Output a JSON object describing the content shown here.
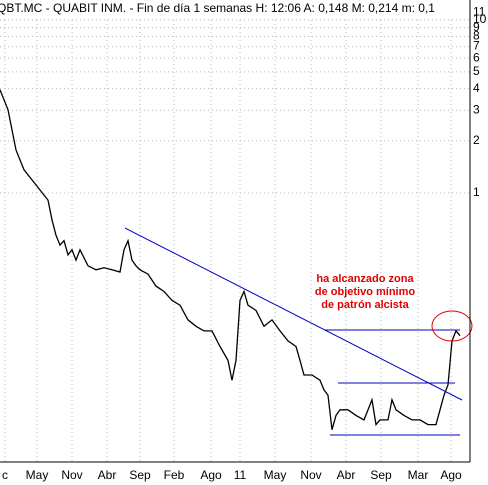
{
  "chart_data": {
    "type": "line",
    "title": "QBT.MC - QUABIT INM. - Fin de día 1 semanas H: 12:06 A: 0,148 M: 0,214 m: 0,1",
    "annotation": [
      "ha alcanzado zona",
      "de objetivo mínimo",
      "de patrón alcista"
    ],
    "log_scale": true,
    "grid": true,
    "x": [
      0,
      2,
      4,
      6,
      8,
      10,
      12,
      13,
      14,
      15,
      16,
      17,
      18,
      19,
      20,
      22,
      24,
      26,
      28,
      30,
      31,
      32,
      33,
      34,
      35,
      37,
      39,
      41,
      43,
      45,
      47,
      49,
      51,
      53,
      55,
      57,
      58,
      59,
      60,
      61,
      62,
      64,
      66,
      68,
      70,
      72,
      74,
      75,
      76,
      78,
      80,
      81,
      82,
      83,
      84,
      85,
      87,
      89,
      91,
      93,
      94,
      95,
      97,
      98,
      99,
      101,
      103,
      105,
      107,
      109,
      110,
      111,
      112,
      113,
      114,
      115
    ],
    "series": [
      {
        "name": "QBT.MC",
        "color": "#000000",
        "values": [
          3.94,
          3.02,
          1.77,
          1.36,
          1.19,
          1.04,
          0.91,
          0.7,
          0.57,
          0.5,
          0.53,
          0.44,
          0.47,
          0.41,
          0.47,
          0.38,
          0.36,
          0.37,
          0.36,
          0.35,
          0.47,
          0.53,
          0.41,
          0.38,
          0.36,
          0.34,
          0.29,
          0.27,
          0.24,
          0.225,
          0.185,
          0.17,
          0.16,
          0.16,
          0.13,
          0.108,
          0.083,
          0.108,
          0.24,
          0.27,
          0.225,
          0.21,
          0.17,
          0.185,
          0.16,
          0.14,
          0.13,
          0.108,
          0.089,
          0.089,
          0.083,
          0.073,
          0.068,
          0.043,
          0.052,
          0.056,
          0.056,
          0.052,
          0.049,
          0.064,
          0.046,
          0.049,
          0.049,
          0.064,
          0.056,
          0.052,
          0.049,
          0.049,
          0.046,
          0.046,
          0.056,
          0.068,
          0.078,
          0.14,
          0.16,
          0.15
        ]
      }
    ],
    "xlim": [
      0,
      117.5
    ],
    "xticks": [
      {
        "value": 1.25,
        "label": "c"
      },
      {
        "value": 9.25,
        "label": "May"
      },
      {
        "value": 18,
        "label": "Nov"
      },
      {
        "value": 26.75,
        "label": "Abr"
      },
      {
        "value": 35,
        "label": "Sep"
      },
      {
        "value": 43.5,
        "label": "Feb"
      },
      {
        "value": 52.75,
        "label": "Ago"
      },
      {
        "value": 60,
        "label": "11"
      },
      {
        "value": 68.75,
        "label": "May"
      },
      {
        "value": 77.75,
        "label": "Nov"
      },
      {
        "value": 86.5,
        "label": "Abr"
      },
      {
        "value": 95.25,
        "label": "Sep"
      },
      {
        "value": 104.5,
        "label": "Mar"
      },
      {
        "value": 112.75,
        "label": "Ago"
      }
    ],
    "ylim": [
      0.028,
      13
    ],
    "yticks": [
      1,
      2,
      3,
      4,
      5,
      6,
      7,
      8,
      9,
      10,
      11
    ]
  }
}
